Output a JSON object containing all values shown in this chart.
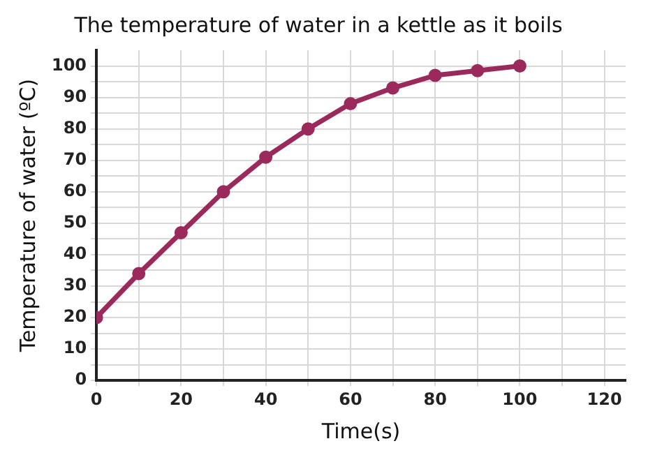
{
  "chart_data": {
    "type": "line",
    "title": "The temperature of water in a kettle as it boils",
    "xlabel": "Time(s)",
    "ylabel": "Temperature of water (ºC)",
    "x": [
      0,
      10,
      20,
      30,
      40,
      50,
      60,
      70,
      80,
      90,
      100
    ],
    "series": [
      {
        "color": "#9b2a5c",
        "values": [
          20,
          34,
          47,
          60,
          71,
          80,
          88,
          93,
          97,
          98.5,
          100
        ]
      }
    ],
    "xlim": [
      0,
      125
    ],
    "xticks": [
      0,
      20,
      40,
      60,
      80,
      100,
      120,
      {
        "value": 10,
        "label": null
      },
      {
        "value": 30,
        "label": null
      },
      {
        "value": 50,
        "label": null
      },
      {
        "value": 70,
        "label": null
      },
      {
        "value": 90,
        "label": null
      },
      {
        "value": 110,
        "label": null
      }
    ],
    "ylim": [
      0,
      105
    ],
    "yticks": [
      0,
      10,
      20,
      30,
      40,
      50,
      60,
      70,
      80,
      90,
      100,
      {
        "value": 5,
        "label": null
      },
      {
        "value": 15,
        "label": null
      },
      {
        "value": 25,
        "label": null
      },
      {
        "value": 35,
        "label": null
      },
      {
        "value": 45,
        "label": null
      },
      {
        "value": 55,
        "label": null
      },
      {
        "value": 65,
        "label": null
      },
      {
        "value": 75,
        "label": null
      },
      {
        "value": 85,
        "label": null
      },
      {
        "value": 95,
        "label": null
      }
    ],
    "grid": true,
    "marker": "circle",
    "line_style": "solid",
    "legend": false
  }
}
